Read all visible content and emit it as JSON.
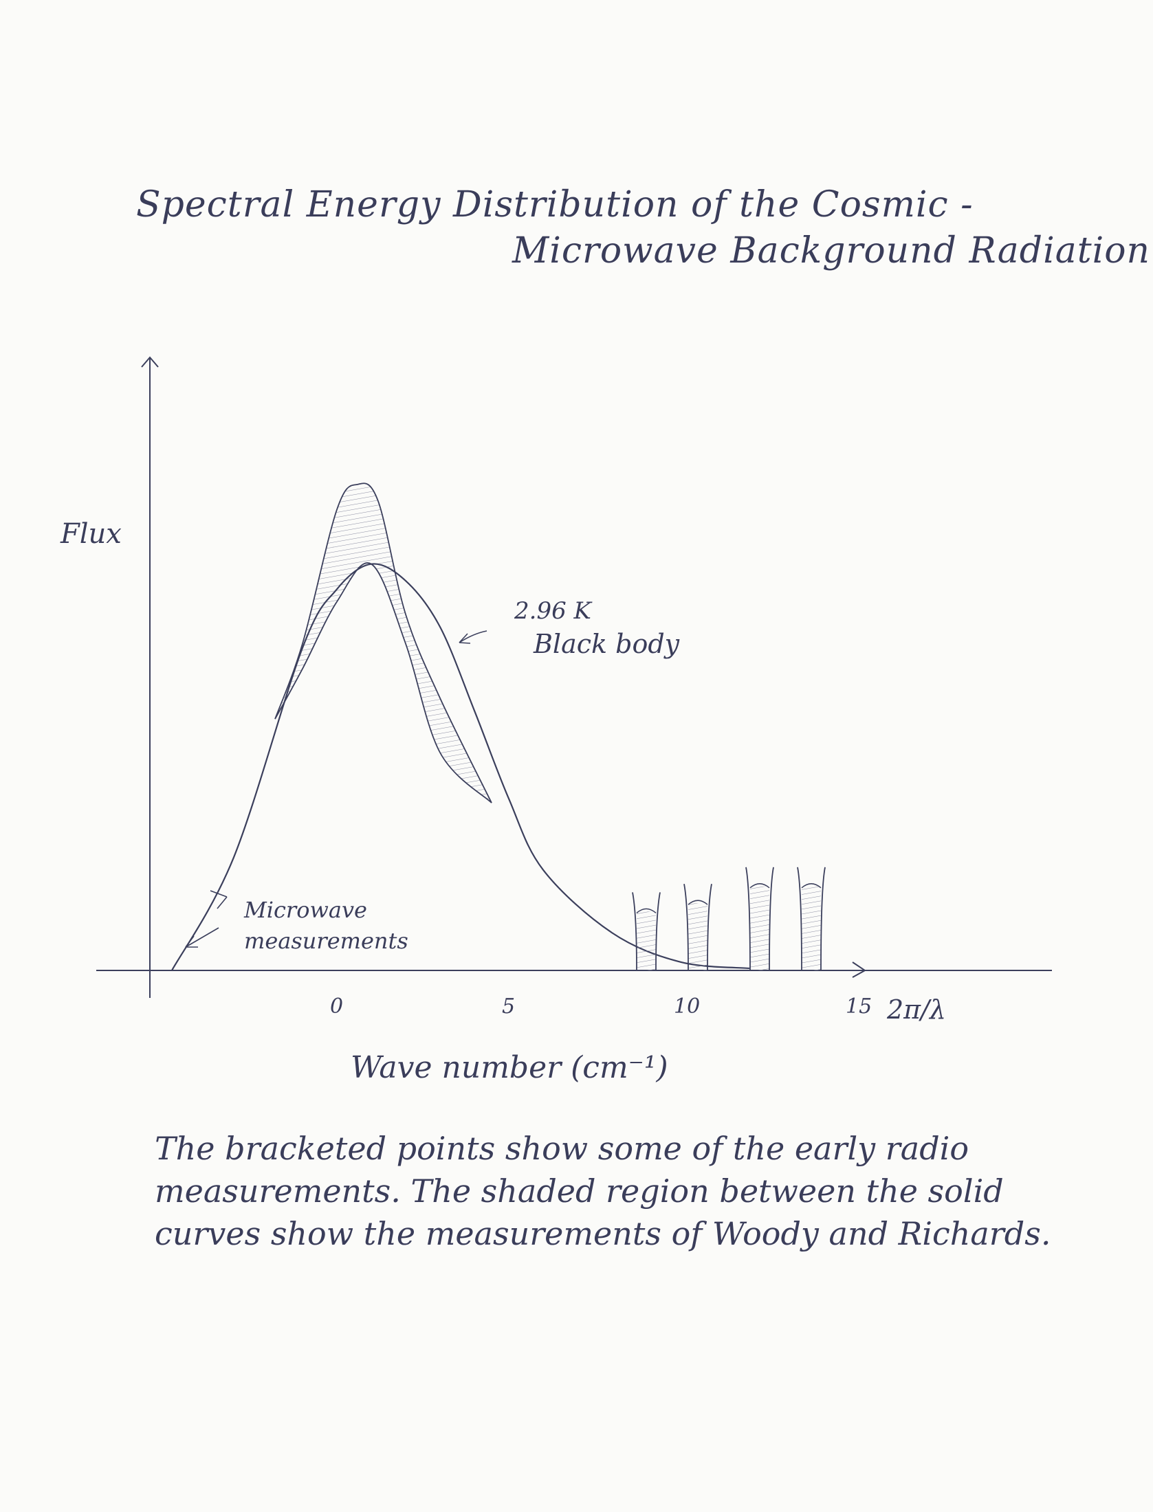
{
  "title_line1": "Spectral Energy Distribution of the Cosmic -",
  "title_line2": "Microwave Background Radiation",
  "caption": "The bracketed points show some of the early radio measurements. The shaded region between the solid curves show the measurements of Woody and Richards.",
  "chart_data": {
    "type": "line",
    "title": "Spectral Energy Distribution of the Cosmic - Microwave Background Radiation",
    "ylabel": "Flux",
    "xlabel": "Wave number (cm⁻¹)",
    "x_axis_end_label": "2π/λ",
    "xticks": [
      "0",
      "5",
      "10",
      "15"
    ],
    "xlim": [
      -5,
      20
    ],
    "ylim": [
      0,
      1.25
    ],
    "series": [
      {
        "name": "2.96 K Black body",
        "x": [
          -4.8,
          -3,
          -1,
          0,
          1,
          2,
          3,
          4,
          5,
          6,
          8,
          10,
          12
        ],
        "y": [
          0.0,
          0.27,
          0.77,
          0.91,
          0.97,
          0.93,
          0.82,
          0.62,
          0.41,
          0.24,
          0.09,
          0.02,
          0.005
        ]
      }
    ],
    "shaded_band": {
      "upper": {
        "x": [
          -1.8,
          -1,
          0,
          0.6,
          1.2,
          2,
          3,
          4.5
        ],
        "y": [
          0.6,
          0.78,
          1.1,
          1.16,
          1.12,
          0.85,
          0.65,
          0.4
        ]
      },
      "lower": {
        "x": [
          -1.8,
          -1,
          0,
          1,
          2,
          3,
          4.5
        ],
        "y": [
          0.6,
          0.72,
          0.88,
          0.97,
          0.78,
          0.52,
          0.4
        ]
      }
    },
    "bracketed_points": [
      {
        "x": 9.0,
        "ylow": 0.0,
        "yhigh": 0.17
      },
      {
        "x": 10.5,
        "ylow": 0.0,
        "yhigh": 0.19
      },
      {
        "x": 12.3,
        "ylow": 0.0,
        "yhigh": 0.23
      },
      {
        "x": 13.8,
        "ylow": 0.0,
        "yhigh": 0.23
      }
    ],
    "annotations": [
      {
        "text": "2.96 K",
        "target": "black-body-curve"
      },
      {
        "text": "Black body",
        "target": "black-body-curve"
      },
      {
        "text": "Microwave",
        "target": "low-frequency-points"
      },
      {
        "text": "measurements",
        "target": "low-frequency-points"
      }
    ],
    "legend": "none",
    "grid": false
  }
}
